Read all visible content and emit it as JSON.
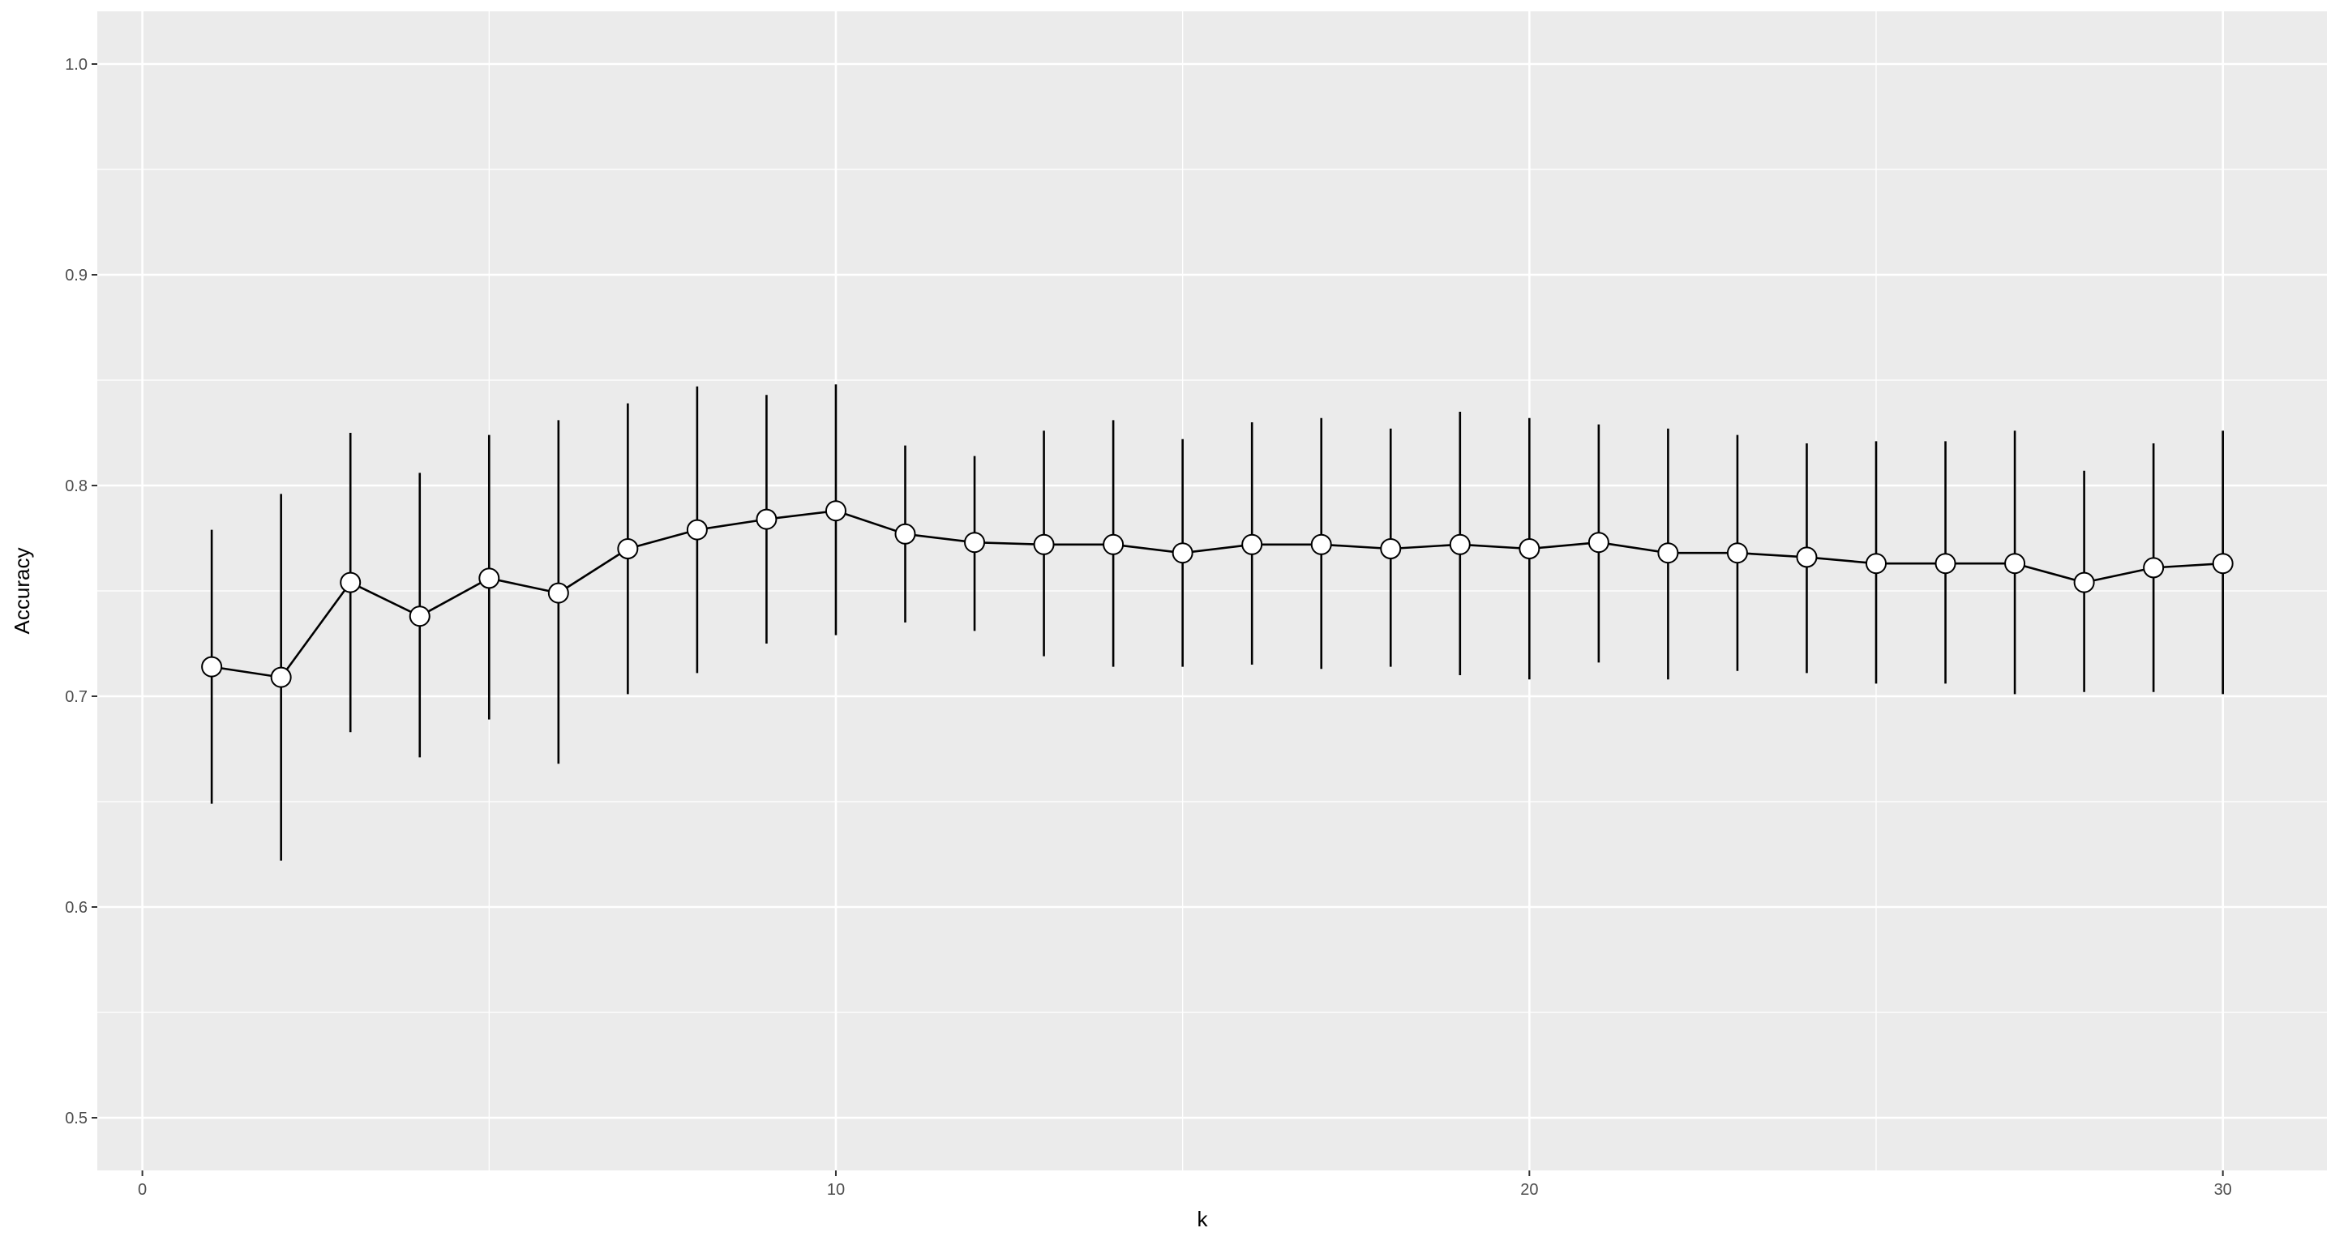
{
  "chart_data": {
    "type": "line",
    "title": "",
    "xlabel": "k",
    "ylabel": "Accuracy",
    "xlim": [
      -0.65,
      31.5
    ],
    "ylim": [
      0.475,
      1.025
    ],
    "x_ticks": [
      0,
      10,
      20,
      30
    ],
    "x_tick_labels": [
      "0",
      "10",
      "20",
      "30"
    ],
    "y_ticks": [
      0.5,
      0.6,
      0.7,
      0.8,
      0.9,
      1.0
    ],
    "y_tick_labels": [
      "0.5",
      "0.6",
      "0.7",
      "0.8",
      "0.9",
      "1.0"
    ],
    "grid": true,
    "legend": "none",
    "colors": {
      "panel": "#ebebeb",
      "grid": "#ffffff",
      "line": "#000000",
      "point_fill": "#ffffff"
    },
    "x": [
      1,
      2,
      3,
      4,
      5,
      6,
      7,
      8,
      9,
      10,
      11,
      12,
      13,
      14,
      15,
      16,
      17,
      18,
      19,
      20,
      21,
      22,
      23,
      24,
      25,
      26,
      27,
      28,
      29,
      30
    ],
    "y": [
      0.714,
      0.709,
      0.754,
      0.738,
      0.756,
      0.749,
      0.77,
      0.779,
      0.784,
      0.788,
      0.777,
      0.773,
      0.772,
      0.772,
      0.768,
      0.772,
      0.772,
      0.77,
      0.772,
      0.77,
      0.773,
      0.768,
      0.768,
      0.766,
      0.763,
      0.763,
      0.763,
      0.754,
      0.761,
      0.763
    ],
    "y_lower": [
      0.649,
      0.622,
      0.683,
      0.671,
      0.689,
      0.668,
      0.701,
      0.711,
      0.725,
      0.729,
      0.735,
      0.731,
      0.719,
      0.714,
      0.714,
      0.715,
      0.713,
      0.714,
      0.71,
      0.708,
      0.716,
      0.708,
      0.712,
      0.711,
      0.706,
      0.706,
      0.701,
      0.702,
      0.702,
      0.701
    ],
    "y_upper": [
      0.779,
      0.796,
      0.825,
      0.806,
      0.824,
      0.831,
      0.839,
      0.847,
      0.843,
      0.848,
      0.819,
      0.814,
      0.826,
      0.831,
      0.822,
      0.83,
      0.832,
      0.827,
      0.835,
      0.832,
      0.829,
      0.827,
      0.824,
      0.82,
      0.821,
      0.821,
      0.826,
      0.807,
      0.82,
      0.826
    ]
  }
}
